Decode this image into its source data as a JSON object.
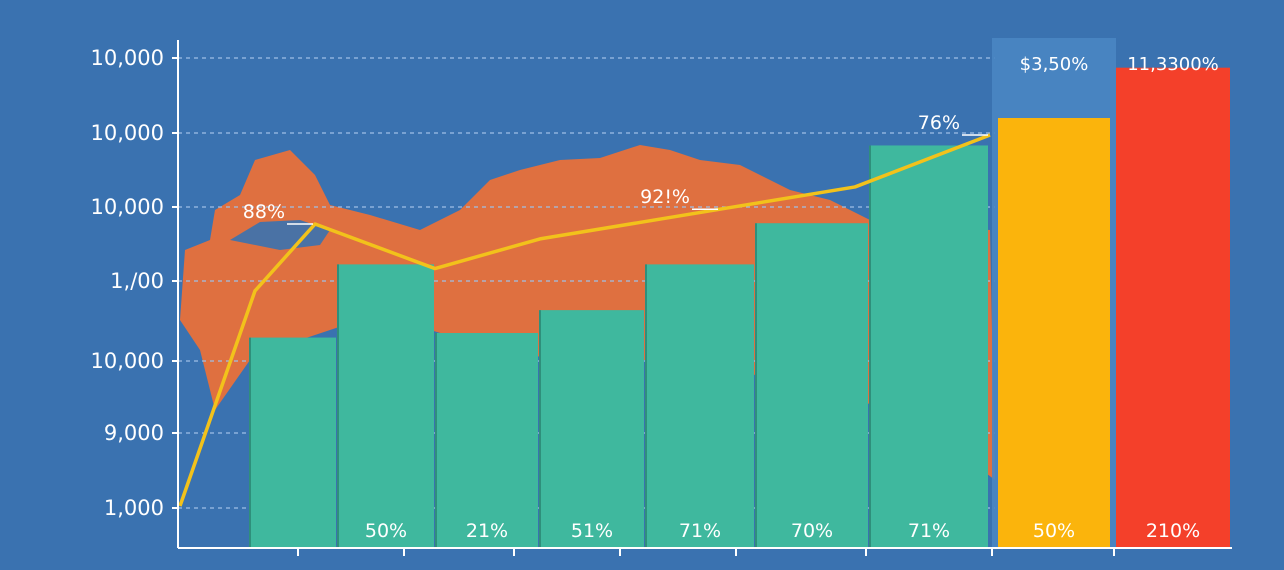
{
  "chart_data": {
    "type": "bar",
    "colors": {
      "background": "#3a72b0",
      "map": "#e8703a",
      "bars": "#3fb89e",
      "line": "#f2c21b",
      "highlight_bar_1": "#fbb40c",
      "highlight_bar_2": "#f4402a",
      "highlight_panel": "#4a86c3",
      "gridline": "#9fc0e6",
      "axis": "#ffffff"
    },
    "y_tick_labels": [
      "10,000",
      "10,000",
      "10,000",
      "1,/00",
      "10,000",
      "9,000",
      "1,000"
    ],
    "grid": true,
    "bars": [
      {
        "value": 0.46
      },
      {
        "value": 0.62,
        "label": "50%"
      },
      {
        "value": 0.47,
        "label": "21%"
      },
      {
        "value": 0.52,
        "label": "51%"
      },
      {
        "value": 0.62,
        "label": "71%"
      },
      {
        "value": 0.71,
        "label": "70%"
      },
      {
        "value": 0.88,
        "label": "71%"
      },
      {
        "value": 0.94,
        "label": "50%",
        "top_label": "$3,50%"
      },
      {
        "value": 1.05,
        "label": "210%",
        "top_label": "11,3300%"
      }
    ],
    "line": {
      "values": [
        0.0,
        0.58,
        0.76,
        0.64,
        0.72,
        0.8,
        0.86,
        1.0
      ],
      "annotations": [
        {
          "text": "88%",
          "at": 2
        },
        {
          "text": "92!%",
          "at": 5
        },
        {
          "text": "76%",
          "at": 7
        }
      ]
    }
  }
}
